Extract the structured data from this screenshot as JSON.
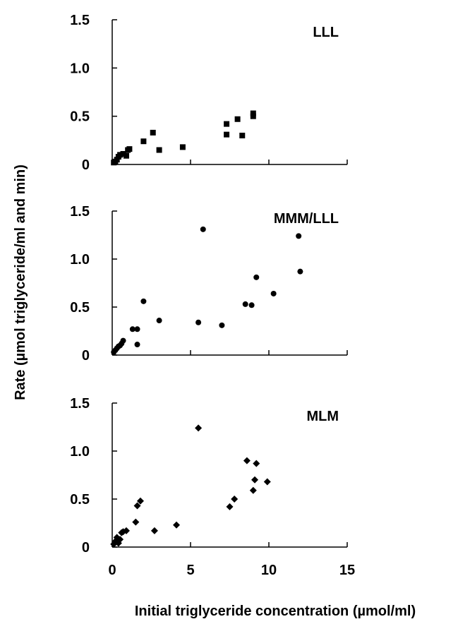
{
  "chart_data": {
    "type": "scatter",
    "ylabel": "Rate (µmol triglyceride/ml and min)",
    "xlabel": "Initial triglyceride concentration (µmol/ml)",
    "x_ticks": [
      "0",
      "5",
      "10",
      "15"
    ],
    "xlim": [
      0,
      15
    ],
    "ylim": [
      0,
      1.5
    ],
    "y_ticks": [
      "0",
      "0.5",
      "1.0",
      "1.5"
    ],
    "grid": false,
    "marker_color": "#000000",
    "panels": [
      {
        "label": "LLL",
        "marker": "square",
        "points": [
          [
            0.1,
            0.02
          ],
          [
            0.2,
            0.03
          ],
          [
            0.3,
            0.05
          ],
          [
            0.4,
            0.08
          ],
          [
            0.5,
            0.1
          ],
          [
            0.7,
            0.11
          ],
          [
            0.9,
            0.09
          ],
          [
            1.0,
            0.15
          ],
          [
            1.1,
            0.16
          ],
          [
            2.0,
            0.24
          ],
          [
            2.6,
            0.33
          ],
          [
            3.0,
            0.15
          ],
          [
            4.5,
            0.18
          ],
          [
            7.3,
            0.31
          ],
          [
            7.3,
            0.42
          ],
          [
            8.0,
            0.47
          ],
          [
            8.3,
            0.3
          ],
          [
            9.0,
            0.5
          ],
          [
            9.0,
            0.53
          ]
        ]
      },
      {
        "label": "MMM/LLL",
        "marker": "circle",
        "points": [
          [
            0.1,
            0.03
          ],
          [
            0.2,
            0.05
          ],
          [
            0.3,
            0.07
          ],
          [
            0.4,
            0.09
          ],
          [
            0.5,
            0.1
          ],
          [
            0.6,
            0.12
          ],
          [
            0.7,
            0.15
          ],
          [
            1.3,
            0.27
          ],
          [
            1.6,
            0.27
          ],
          [
            1.6,
            0.11
          ],
          [
            2.0,
            0.56
          ],
          [
            3.0,
            0.36
          ],
          [
            5.5,
            0.34
          ],
          [
            5.8,
            1.31
          ],
          [
            7.0,
            0.31
          ],
          [
            8.5,
            0.53
          ],
          [
            8.9,
            0.52
          ],
          [
            9.2,
            0.81
          ],
          [
            10.3,
            0.64
          ],
          [
            11.9,
            1.24
          ],
          [
            12.0,
            0.87
          ]
        ]
      },
      {
        "label": "MLM",
        "marker": "diamond",
        "points": [
          [
            0.1,
            0.03
          ],
          [
            0.2,
            0.06
          ],
          [
            0.3,
            0.1
          ],
          [
            0.4,
            0.04
          ],
          [
            0.5,
            0.08
          ],
          [
            0.6,
            0.15
          ],
          [
            0.7,
            0.16
          ],
          [
            0.9,
            0.17
          ],
          [
            1.5,
            0.26
          ],
          [
            1.6,
            0.43
          ],
          [
            1.8,
            0.48
          ],
          [
            2.7,
            0.17
          ],
          [
            4.1,
            0.23
          ],
          [
            5.5,
            1.24
          ],
          [
            7.5,
            0.42
          ],
          [
            7.8,
            0.5
          ],
          [
            8.6,
            0.9
          ],
          [
            9.0,
            0.59
          ],
          [
            9.1,
            0.7
          ],
          [
            9.2,
            0.87
          ],
          [
            9.9,
            0.68
          ]
        ]
      }
    ]
  }
}
